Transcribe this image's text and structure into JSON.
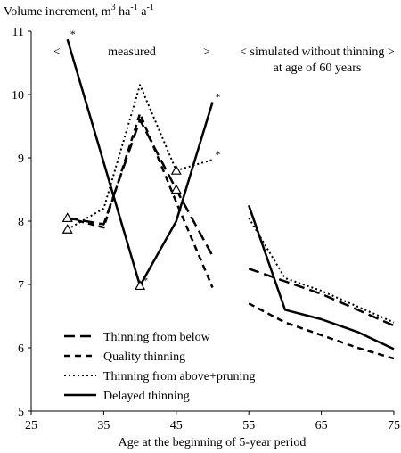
{
  "chart_data": {
    "type": "line",
    "ylabel_main": "Volume increment, m",
    "ylabel_sup1": "3",
    "ylabel_mid": " ha",
    "ylabel_sup2": "-1",
    "ylabel_end": " a",
    "ylabel_sup3": "-1",
    "xlabel": "Age at the beginning of 5-year period",
    "xlim": [
      25,
      75
    ],
    "ylim": [
      5,
      11
    ],
    "xticks": [
      "25",
      "35",
      "45",
      "55",
      "65",
      "75"
    ],
    "xtick_values": [
      25,
      35,
      45,
      55,
      65,
      75
    ],
    "yticks": [
      "5",
      "6",
      "7",
      "8",
      "9",
      "10",
      "11"
    ],
    "ytick_values": [
      5,
      6,
      7,
      8,
      9,
      10,
      11
    ],
    "grid": false,
    "legend_position": "bottom-left",
    "annotations": {
      "measured_left": "<",
      "measured": "measured",
      "measured_right": ">",
      "simulated_line1": "< simulated without thinning >",
      "simulated_line2": "at age of 60 years"
    },
    "series": [
      {
        "name": "Thinning from below",
        "style": "dashed",
        "measured": [
          [
            30,
            8.05
          ],
          [
            35,
            7.95
          ],
          [
            40,
            9.6
          ],
          [
            45,
            8.5
          ],
          [
            50,
            7.45
          ]
        ],
        "simulated": [
          [
            55,
            7.25
          ],
          [
            60,
            7.05
          ],
          [
            65,
            6.85
          ],
          [
            70,
            6.6
          ],
          [
            75,
            6.35
          ]
        ]
      },
      {
        "name": "Quality thinning",
        "style": "dashed-short",
        "measured": [
          [
            30,
            8.05
          ],
          [
            35,
            7.9
          ],
          [
            40,
            9.7
          ],
          [
            45,
            8.3
          ],
          [
            50,
            6.95
          ]
        ],
        "simulated": [
          [
            55,
            6.7
          ],
          [
            60,
            6.4
          ],
          [
            65,
            6.2
          ],
          [
            70,
            6.0
          ],
          [
            75,
            5.83
          ]
        ]
      },
      {
        "name": "Thinning from above+pruning",
        "style": "dotted",
        "measured": [
          [
            30,
            7.87
          ],
          [
            35,
            8.2
          ],
          [
            40,
            10.15
          ],
          [
            45,
            8.8
          ],
          [
            50,
            8.97
          ]
        ],
        "simulated": [
          [
            55,
            8.05
          ],
          [
            60,
            7.1
          ],
          [
            65,
            6.9
          ],
          [
            70,
            6.65
          ],
          [
            75,
            6.4
          ]
        ]
      },
      {
        "name": "Delayed thinning",
        "style": "solid",
        "measured": [
          [
            30,
            10.87
          ],
          [
            40,
            6.98
          ],
          [
            45,
            8.0
          ],
          [
            50,
            9.88
          ]
        ],
        "simulated": [
          [
            55,
            8.25
          ],
          [
            60,
            6.6
          ],
          [
            65,
            6.45
          ],
          [
            70,
            6.25
          ],
          [
            75,
            5.98
          ]
        ]
      }
    ],
    "triangle_markers": [
      [
        30,
        8.05
      ],
      [
        30,
        7.87
      ],
      [
        40,
        6.98
      ],
      [
        45,
        8.8
      ],
      [
        45,
        8.5
      ]
    ],
    "star_markers": [
      {
        "x": 30,
        "y": 10.87,
        "label": "*"
      },
      {
        "x": 40,
        "y": 6.98,
        "label": "*"
      },
      {
        "x": 50,
        "y": 9.88,
        "label": "*"
      },
      {
        "x": 50,
        "y": 8.97,
        "label": "*"
      }
    ]
  }
}
